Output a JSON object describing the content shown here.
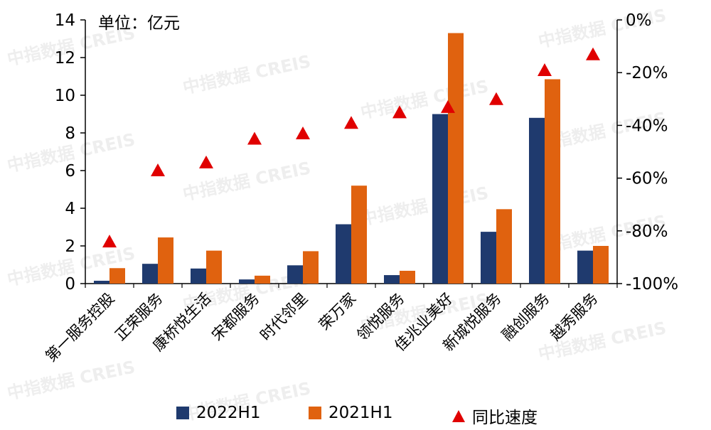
{
  "unit_label": "单位：亿元",
  "watermark": "中指数据 CREIS",
  "colors": {
    "s2022": "#1f3a6e",
    "s2021": "#e0620f",
    "growth": "#e00000"
  },
  "legend": {
    "s2022": "2022H1",
    "s2021": "2021H1",
    "growth": "同比速度"
  },
  "chart_data": {
    "type": "bar",
    "categories": [
      "第一服务控股",
      "正荣服务",
      "康桥悦生活",
      "宋都服务",
      "时代邻里",
      "荣万家",
      "领悦服务",
      "佳兆业美好",
      "新城悦服务",
      "融创服务",
      "越秀服务"
    ],
    "series": [
      {
        "name": "2022H1",
        "values": [
          0.15,
          1.05,
          0.8,
          0.22,
          0.97,
          3.15,
          0.45,
          9.0,
          2.75,
          8.8,
          1.75
        ]
      },
      {
        "name": "2021H1",
        "values": [
          0.82,
          2.45,
          1.75,
          0.42,
          1.72,
          5.2,
          0.68,
          13.3,
          3.95,
          10.85,
          2.0
        ]
      },
      {
        "name": "同比速度",
        "type": "scatter",
        "axis": "right",
        "values": [
          -84,
          -57,
          -54,
          -45,
          -43,
          -39,
          -35,
          -33,
          -30,
          -19,
          -13
        ]
      }
    ],
    "ylim": [
      0,
      14
    ],
    "yticks": [
      "0",
      "2",
      "4",
      "6",
      "8",
      "10",
      "12",
      "14"
    ],
    "y2lim": [
      -100,
      0
    ],
    "y2ticks": [
      "-100%",
      "-80%",
      "-60%",
      "-40%",
      "-20%",
      "0%"
    ],
    "legend_position": "bottom"
  }
}
